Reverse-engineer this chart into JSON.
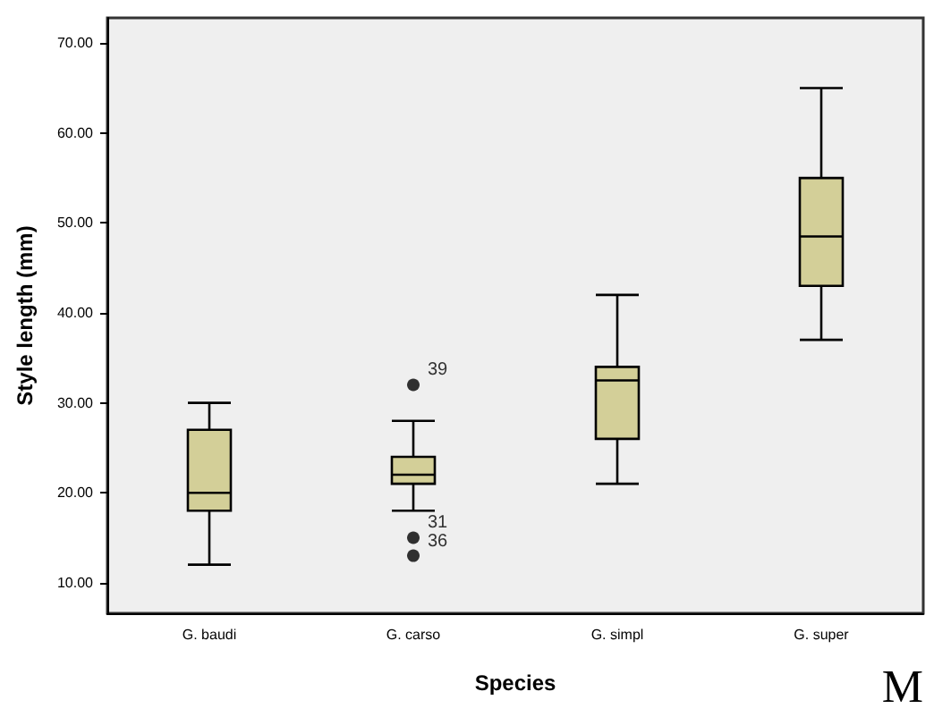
{
  "chart_data": {
    "type": "box",
    "xlabel": "Species",
    "ylabel": "Style length (mm)",
    "categories": [
      "G. baudi",
      "G. carso",
      "G. simpl",
      "G. super"
    ],
    "color": "#d3cf98",
    "boxes": [
      {
        "low": 12,
        "q1": 18,
        "median": 20,
        "q3": 27,
        "high": 30
      },
      {
        "low": 18,
        "q1": 21,
        "median": 22,
        "q3": 24,
        "high": 28,
        "outliers": [
          32,
          15,
          13
        ]
      },
      {
        "low": 21,
        "q1": 26,
        "median": 32.5,
        "q3": 34,
        "high": 42
      },
      {
        "low": 37,
        "q1": 43,
        "median": 48.5,
        "q3": 55,
        "high": 65
      }
    ],
    "ylim": [
      6.6,
      72.8
    ],
    "yticks": [
      {
        "value": 10,
        "label": "10.00"
      },
      {
        "value": 20,
        "label": "20.00"
      },
      {
        "value": 30,
        "label": "30.00"
      },
      {
        "value": 40,
        "label": "40.00"
      },
      {
        "value": 50,
        "label": "50.00"
      },
      {
        "value": 60,
        "label": "60.00"
      },
      {
        "value": 70,
        "label": "70.00"
      }
    ],
    "grid": false,
    "annotations": [
      "39",
      "31",
      "36",
      "M"
    ]
  }
}
